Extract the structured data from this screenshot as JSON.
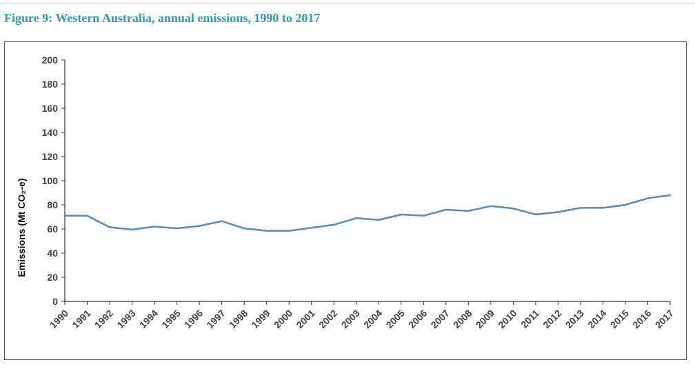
{
  "figure": {
    "title": "Figure 9: Western Australia, annual emissions, 1990 to 2017"
  },
  "colors": {
    "title": "#2e9bb8",
    "series_line": "#5b8ab8",
    "axis": "#333333"
  },
  "chart_data": {
    "type": "line",
    "title": "Figure 9: Western Australia, annual emissions, 1990 to 2017",
    "xlabel": "",
    "ylabel": "Emissions (Mt CO₂-e)",
    "ylim": [
      0,
      200
    ],
    "yticks": [
      0,
      20,
      40,
      60,
      80,
      100,
      120,
      140,
      160,
      180,
      200
    ],
    "grid": false,
    "legend": "none",
    "categories": [
      "1990",
      "1991",
      "1992",
      "1993",
      "1994",
      "1995",
      "1996",
      "1997",
      "1998",
      "1999",
      "2000",
      "2001",
      "2002",
      "2003",
      "2004",
      "2005",
      "2006",
      "2007",
      "2008",
      "2009",
      "2010",
      "2011",
      "2012",
      "2013",
      "2014",
      "2015",
      "2016",
      "2017"
    ],
    "series": [
      {
        "values": [
          71,
          71,
          61.5,
          59.5,
          62,
          60.5,
          62.5,
          66.5,
          60.5,
          58.5,
          58.5,
          61,
          63.5,
          69,
          67.5,
          72,
          71,
          76,
          75,
          79,
          77,
          72,
          74,
          77.5,
          77.5,
          80,
          85.5,
          88
        ]
      }
    ]
  }
}
